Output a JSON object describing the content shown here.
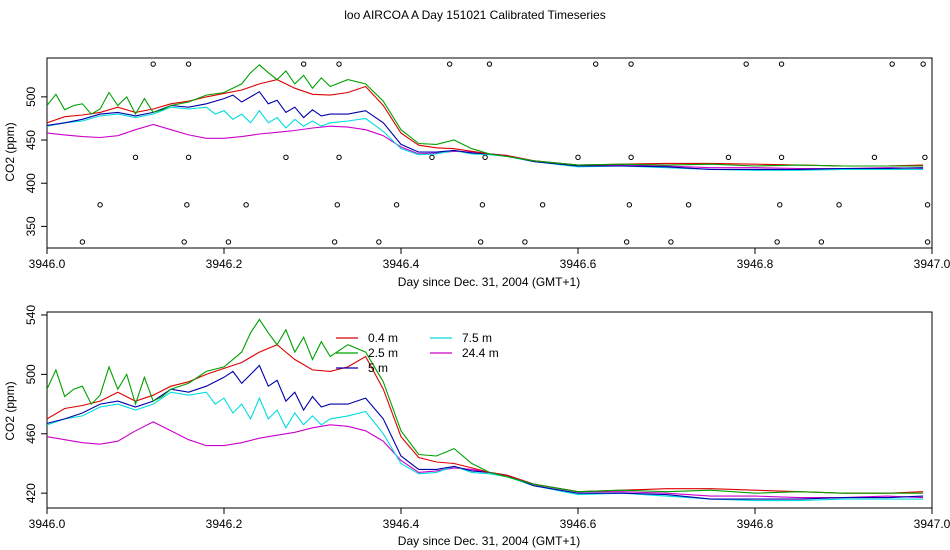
{
  "title": "loo AIRCOA A  Day 151021  Calibrated Timeseries",
  "colors": {
    "0.4 m": "#dd0000",
    "2.5 m": "#00a000",
    "5 m": "#0000aa",
    "7.5 m": "#00dddd",
    "24.4 m": "#cc00cc",
    "axis": "#000000",
    "markers": "#000000"
  },
  "chart_data": [
    {
      "type": "line",
      "title": "",
      "xlabel": "Day since Dec. 31, 2004 (GMT+1)",
      "ylabel": "CO2 (ppm)",
      "xlim": [
        3946.0,
        3947.0
      ],
      "ylim": [
        325,
        545
      ],
      "x_ticks": [
        "3946.0",
        "3946.2",
        "3946.4",
        "3946.6",
        "3946.8",
        "3947.0"
      ],
      "y_ticks": [
        "350",
        "400",
        "450",
        "500"
      ],
      "grid": false,
      "legend": "none",
      "series": [
        {
          "name": "0.4 m",
          "x": [
            3946.0,
            3946.02,
            3946.04,
            3946.06,
            3946.08,
            3946.1,
            3946.12,
            3946.14,
            3946.16,
            3946.18,
            3946.2,
            3946.22,
            3946.24,
            3946.26,
            3946.28,
            3946.3,
            3946.32,
            3946.34,
            3946.36,
            3946.38,
            3946.4,
            3946.42,
            3946.44,
            3946.46,
            3946.48,
            3946.5,
            3946.52,
            3946.55,
            3946.6,
            3946.65,
            3946.7,
            3946.75,
            3946.8,
            3946.85,
            3946.9,
            3946.95,
            3946.99
          ],
          "values": [
            470,
            477,
            479,
            482,
            488,
            482,
            486,
            492,
            495,
            500,
            504,
            508,
            515,
            520,
            510,
            503,
            502,
            505,
            512,
            490,
            458,
            444,
            441,
            440,
            437,
            434,
            432,
            426,
            421,
            422,
            423,
            423,
            422,
            421,
            420,
            420,
            421
          ]
        },
        {
          "name": "2.5 m",
          "x": [
            3946.0,
            3946.01,
            3946.02,
            3946.03,
            3946.04,
            3946.05,
            3946.06,
            3946.07,
            3946.08,
            3946.09,
            3946.1,
            3946.11,
            3946.12,
            3946.13,
            3946.14,
            3946.16,
            3946.18,
            3946.2,
            3946.22,
            3946.23,
            3946.24,
            3946.25,
            3946.26,
            3946.27,
            3946.28,
            3946.29,
            3946.3,
            3946.31,
            3946.32,
            3946.34,
            3946.36,
            3946.38,
            3946.4,
            3946.42,
            3946.44,
            3946.46,
            3946.48,
            3946.5,
            3946.52,
            3946.55,
            3946.6,
            3946.65,
            3946.7,
            3946.75,
            3946.8,
            3946.85,
            3946.9,
            3946.95,
            3946.99
          ],
          "values": [
            490,
            503,
            485,
            490,
            492,
            480,
            486,
            505,
            490,
            500,
            480,
            498,
            482,
            485,
            490,
            494,
            502,
            505,
            515,
            528,
            537,
            528,
            520,
            530,
            515,
            525,
            510,
            522,
            512,
            520,
            515,
            495,
            462,
            446,
            445,
            450,
            440,
            434,
            431,
            426,
            421,
            422,
            421,
            422,
            420,
            421,
            420,
            420,
            420
          ]
        },
        {
          "name": "5 m",
          "x": [
            3946.0,
            3946.02,
            3946.04,
            3946.06,
            3946.08,
            3946.1,
            3946.12,
            3946.14,
            3946.16,
            3946.18,
            3946.2,
            3946.21,
            3946.22,
            3946.23,
            3946.24,
            3946.25,
            3946.26,
            3946.27,
            3946.28,
            3946.29,
            3946.3,
            3946.31,
            3946.32,
            3946.34,
            3946.36,
            3946.38,
            3946.4,
            3946.42,
            3946.44,
            3946.46,
            3946.48,
            3946.5,
            3946.52,
            3946.55,
            3946.6,
            3946.65,
            3946.7,
            3946.75,
            3946.8,
            3946.85,
            3946.9,
            3946.95,
            3946.99
          ],
          "values": [
            467,
            470,
            474,
            480,
            482,
            478,
            482,
            490,
            488,
            492,
            498,
            502,
            494,
            500,
            506,
            492,
            496,
            482,
            488,
            476,
            485,
            478,
            480,
            480,
            484,
            470,
            445,
            436,
            436,
            438,
            435,
            434,
            432,
            425,
            420,
            420,
            419,
            416,
            416,
            416,
            417,
            417,
            418
          ]
        },
        {
          "name": "7.5 m",
          "x": [
            3946.0,
            3946.02,
            3946.04,
            3946.06,
            3946.08,
            3946.1,
            3946.12,
            3946.14,
            3946.16,
            3946.18,
            3946.19,
            3946.2,
            3946.21,
            3946.22,
            3946.23,
            3946.24,
            3946.25,
            3946.26,
            3946.27,
            3946.28,
            3946.29,
            3946.3,
            3946.31,
            3946.32,
            3946.34,
            3946.36,
            3946.38,
            3946.4,
            3946.42,
            3946.44,
            3946.46,
            3946.48,
            3946.5,
            3946.52,
            3946.55,
            3946.6,
            3946.65,
            3946.7,
            3946.75,
            3946.8,
            3946.85,
            3946.9,
            3946.95,
            3946.99
          ],
          "values": [
            466,
            470,
            472,
            478,
            480,
            476,
            480,
            488,
            486,
            488,
            480,
            484,
            474,
            480,
            470,
            484,
            470,
            476,
            464,
            474,
            466,
            472,
            466,
            470,
            472,
            475,
            460,
            440,
            433,
            434,
            438,
            434,
            433,
            431,
            425,
            419,
            420,
            418,
            416,
            415,
            415,
            416,
            416,
            416
          ]
        },
        {
          "name": "24.4 m",
          "x": [
            3946.0,
            3946.02,
            3946.04,
            3946.06,
            3946.08,
            3946.1,
            3946.12,
            3946.14,
            3946.16,
            3946.18,
            3946.2,
            3946.22,
            3946.24,
            3946.26,
            3946.28,
            3946.3,
            3946.32,
            3946.34,
            3946.36,
            3946.38,
            3946.4,
            3946.42,
            3946.44,
            3946.46,
            3946.48,
            3946.5,
            3946.52,
            3946.55,
            3946.6,
            3946.65,
            3946.7,
            3946.75,
            3946.8,
            3946.85,
            3946.9,
            3946.95,
            3946.99
          ],
          "values": [
            458,
            456,
            454,
            453,
            455,
            462,
            468,
            462,
            456,
            452,
            452,
            454,
            457,
            459,
            461,
            464,
            466,
            465,
            462,
            455,
            442,
            434,
            435,
            437,
            436,
            434,
            432,
            426,
            421,
            421,
            420,
            418,
            418,
            417,
            417,
            418,
            417
          ]
        }
      ],
      "markers": {
        "x": [
          3946.04,
          3946.06,
          3946.1,
          3946.12,
          3946.155,
          3946.158,
          3946.16,
          3946.16,
          3946.205,
          3946.225,
          3946.27,
          3946.29,
          3946.325,
          3946.328,
          3946.33,
          3946.33,
          3946.375,
          3946.395,
          3946.435,
          3946.455,
          3946.49,
          3946.492,
          3946.495,
          3946.5,
          3946.54,
          3946.56,
          3946.6,
          3946.62,
          3946.655,
          3946.658,
          3946.66,
          3946.66,
          3946.705,
          3946.725,
          3946.77,
          3946.79,
          3946.825,
          3946.828,
          3946.83,
          3946.83,
          3946.875,
          3946.895,
          3946.935,
          3946.955,
          3946.99,
          3946.992,
          3946.995,
          3946.995
        ],
        "y": [
          332,
          375,
          430,
          538,
          332,
          375,
          430,
          538,
          332,
          375,
          430,
          538,
          332,
          375,
          430,
          538,
          332,
          375,
          430,
          538,
          332,
          375,
          430,
          538,
          332,
          375,
          430,
          538,
          332,
          375,
          430,
          538,
          332,
          375,
          430,
          538,
          332,
          375,
          430,
          538,
          332,
          375,
          430,
          538,
          538,
          430,
          375,
          332
        ]
      }
    },
    {
      "type": "line",
      "title": "",
      "xlabel": "Day since Dec. 31, 2004 (GMT+1)",
      "ylabel": "CO2 (ppm)",
      "xlim": [
        3946.0,
        3947.0
      ],
      "ylim": [
        410,
        542
      ],
      "x_ticks": [
        "3946.0",
        "3946.2",
        "3946.4",
        "3946.6",
        "3946.8",
        "3947.0"
      ],
      "y_ticks": [
        "420",
        "460",
        "500",
        "540"
      ],
      "grid": false,
      "legend": "top-center",
      "legend_entries": [
        "0.4 m",
        "2.5 m",
        "5 m",
        "7.5 m",
        "24.4 m"
      ],
      "series_ref": "same series as first panel"
    }
  ]
}
